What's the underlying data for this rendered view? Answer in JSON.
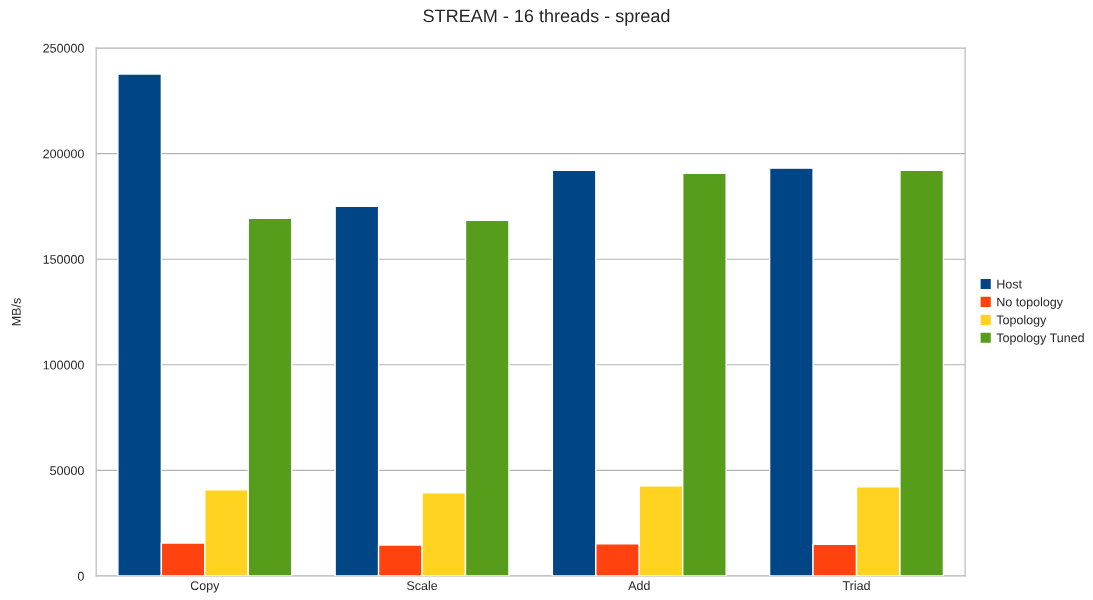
{
  "chart_data": {
    "type": "bar",
    "title": "STREAM - 16 threads - spread",
    "ylabel": "MB/s",
    "categories": [
      "Copy",
      "Scale",
      "Add",
      "Triad"
    ],
    "series": [
      {
        "name": "Host",
        "color": "#004586",
        "values": [
          237700,
          175000,
          192100,
          193100
        ]
      },
      {
        "name": "No topology",
        "color": "#ff420e",
        "values": [
          15600,
          14700,
          15200,
          15000
        ]
      },
      {
        "name": "Topology",
        "color": "#ffd320",
        "values": [
          40800,
          39400,
          42700,
          42200
        ]
      },
      {
        "name": "Topology Tuned",
        "color": "#579d1c",
        "values": [
          169400,
          168400,
          190700,
          192100
        ]
      }
    ],
    "ylim": [
      0,
      250000
    ],
    "yticks": [
      0,
      50000,
      100000,
      150000,
      200000,
      250000
    ],
    "grid": "y",
    "legend": "right"
  }
}
